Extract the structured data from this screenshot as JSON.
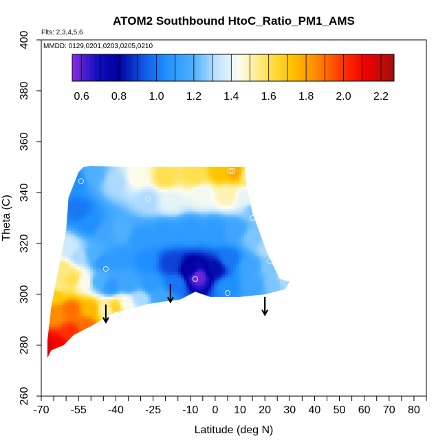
{
  "chart_data": {
    "type": "heatmap",
    "title": "ATOM2 Southbound HtoC_Ratio_PM1_AMS",
    "flights_note": "Flts: 2,3,4,5,6",
    "dates_note": "MMDD: 0129,0201,0203,0205,0210",
    "xlabel": "Latitude (deg N)",
    "ylabel": "Theta (C)",
    "xlim": [
      -70,
      85
    ],
    "ylim": [
      260,
      400
    ],
    "x_ticks_labeled": [
      "-70",
      "-55",
      "-40",
      "-25",
      "-10",
      "0",
      "10",
      "20",
      "30",
      "40",
      "50",
      "60",
      "70",
      "80"
    ],
    "x_ticks_labeled_values": [
      -70,
      -55,
      -40,
      -25,
      -10,
      0,
      10,
      20,
      30,
      40,
      50,
      60,
      70,
      80
    ],
    "x_ticks_minor_values": [
      -65,
      -60,
      -50,
      -45,
      -35,
      -30,
      -20,
      -15,
      -5,
      5,
      15,
      25,
      35,
      45,
      55,
      65,
      75,
      85
    ],
    "y_ticks": [
      "260",
      "280",
      "300",
      "320",
      "340",
      "360",
      "380",
      "400"
    ],
    "y_ticks_values": [
      260,
      280,
      300,
      320,
      340,
      360,
      380,
      400
    ],
    "colorbar": {
      "range": [
        0.55,
        2.27
      ],
      "tick_labels": [
        "0.6",
        "0.8",
        "1.0",
        "1.2",
        "1.4",
        "1.6",
        "1.8",
        "2.0",
        "2.2"
      ],
      "tick_values": [
        0.6,
        0.8,
        1.0,
        1.2,
        1.4,
        1.6,
        1.8,
        2.0,
        2.2
      ],
      "divider_values": [
        0.6,
        0.7,
        0.8,
        0.9,
        1.0,
        1.1,
        1.2,
        1.3,
        1.4,
        1.5,
        1.6,
        1.7,
        1.8,
        1.9,
        2.0,
        2.1,
        2.2
      ],
      "color_stops": [
        {
          "v": 0.55,
          "c": "#8a2be2"
        },
        {
          "v": 0.68,
          "c": "#1010c0"
        },
        {
          "v": 0.8,
          "c": "#0000a0"
        },
        {
          "v": 0.92,
          "c": "#1050e0"
        },
        {
          "v": 1.05,
          "c": "#1e90ff"
        },
        {
          "v": 1.2,
          "c": "#4fb0ff"
        },
        {
          "v": 1.32,
          "c": "#bfe3ff"
        },
        {
          "v": 1.44,
          "c": "#fbfdf0"
        },
        {
          "v": 1.6,
          "c": "#ffe050"
        },
        {
          "v": 1.72,
          "c": "#ffc400"
        },
        {
          "v": 1.85,
          "c": "#ff8c00"
        },
        {
          "v": 2.0,
          "c": "#ff3000"
        },
        {
          "v": 2.12,
          "c": "#ee0000"
        },
        {
          "v": 2.27,
          "c": "#a01010"
        }
      ]
    },
    "field_points": [
      {
        "lat": -56,
        "theta": 345,
        "v": 1.05
      },
      {
        "lat": -49,
        "theta": 347,
        "v": 1.2
      },
      {
        "lat": -40,
        "theta": 344,
        "v": 1.3
      },
      {
        "lat": -31,
        "theta": 346,
        "v": 1.45
      },
      {
        "lat": -20,
        "theta": 346,
        "v": 1.6
      },
      {
        "lat": -8,
        "theta": 347,
        "v": 1.6
      },
      {
        "lat": 2,
        "theta": 348,
        "v": 1.72
      },
      {
        "lat": 8,
        "theta": 348,
        "v": 1.78
      },
      {
        "lat": 13,
        "theta": 347,
        "v": 1.55
      },
      {
        "lat": -27,
        "theta": 337,
        "v": 1.3
      },
      {
        "lat": -18,
        "theta": 337,
        "v": 1.4
      },
      {
        "lat": -5,
        "theta": 339,
        "v": 1.42
      },
      {
        "lat": 5,
        "theta": 339,
        "v": 1.5
      },
      {
        "lat": 12,
        "theta": 338,
        "v": 1.4
      },
      {
        "lat": 16,
        "theta": 333,
        "v": 1.25
      },
      {
        "lat": -55,
        "theta": 333,
        "v": 1.0
      },
      {
        "lat": -50,
        "theta": 328,
        "v": 1.05
      },
      {
        "lat": -44,
        "theta": 325,
        "v": 1.15
      },
      {
        "lat": -38,
        "theta": 325,
        "v": 1.2
      },
      {
        "lat": -30,
        "theta": 322,
        "v": 1.1
      },
      {
        "lat": -20,
        "theta": 324,
        "v": 1.1
      },
      {
        "lat": -10,
        "theta": 325,
        "v": 1.1
      },
      {
        "lat": 0,
        "theta": 325,
        "v": 1.1
      },
      {
        "lat": 8,
        "theta": 325,
        "v": 1.15
      },
      {
        "lat": 15,
        "theta": 322,
        "v": 1.25
      },
      {
        "lat": 21,
        "theta": 318,
        "v": 1.3
      },
      {
        "lat": -59,
        "theta": 318,
        "v": 1.35
      },
      {
        "lat": -55,
        "theta": 315,
        "v": 1.3
      },
      {
        "lat": -49,
        "theta": 316,
        "v": 1.2
      },
      {
        "lat": -45,
        "theta": 313,
        "v": 1.1
      },
      {
        "lat": -38,
        "theta": 314,
        "v": 1.1
      },
      {
        "lat": -28,
        "theta": 313,
        "v": 1.05
      },
      {
        "lat": -18,
        "theta": 312,
        "v": 0.9
      },
      {
        "lat": -10,
        "theta": 310,
        "v": 0.78
      },
      {
        "lat": -7,
        "theta": 307,
        "v": 0.58
      },
      {
        "lat": 0,
        "theta": 310,
        "v": 0.82
      },
      {
        "lat": 6,
        "theta": 314,
        "v": 1.0
      },
      {
        "lat": 14,
        "theta": 311,
        "v": 1.15
      },
      {
        "lat": 22,
        "theta": 311,
        "v": 1.25
      },
      {
        "lat": 28,
        "theta": 305,
        "v": 1.3
      },
      {
        "lat": -63,
        "theta": 303,
        "v": 1.55
      },
      {
        "lat": -57,
        "theta": 306,
        "v": 1.6
      },
      {
        "lat": -53,
        "theta": 305,
        "v": 1.45
      },
      {
        "lat": -47,
        "theta": 305,
        "v": 1.2
      },
      {
        "lat": -42,
        "theta": 303,
        "v": 1.1
      },
      {
        "lat": -35,
        "theta": 304,
        "v": 1.15
      },
      {
        "lat": -26,
        "theta": 304,
        "v": 1.1
      },
      {
        "lat": -16,
        "theta": 304,
        "v": 1.0
      },
      {
        "lat": 5,
        "theta": 303,
        "v": 1.05
      },
      {
        "lat": 15,
        "theta": 303,
        "v": 1.15
      },
      {
        "lat": 24,
        "theta": 304,
        "v": 1.25
      },
      {
        "lat": -64,
        "theta": 292,
        "v": 1.85
      },
      {
        "lat": -58,
        "theta": 294,
        "v": 1.9
      },
      {
        "lat": -50,
        "theta": 294,
        "v": 1.75
      },
      {
        "lat": -44,
        "theta": 294,
        "v": 1.5
      },
      {
        "lat": -40,
        "theta": 295,
        "v": 1.65
      },
      {
        "lat": -36,
        "theta": 296,
        "v": 1.45
      },
      {
        "lat": -30,
        "theta": 298,
        "v": 1.3
      },
      {
        "lat": -22,
        "theta": 299,
        "v": 1.15
      },
      {
        "lat": -67,
        "theta": 279,
        "v": 2.15
      },
      {
        "lat": -63,
        "theta": 280,
        "v": 2.1
      },
      {
        "lat": -58,
        "theta": 285,
        "v": 2.0
      },
      {
        "lat": -52,
        "theta": 288,
        "v": 1.9
      },
      {
        "lat": -61,
        "theta": 310,
        "v": 1.55
      },
      {
        "lat": -64,
        "theta": 300,
        "v": 1.7
      }
    ],
    "sample_circles": [
      {
        "lat": -54,
        "theta": 344.5
      },
      {
        "lat": 6,
        "theta": 348.5
      },
      {
        "lat": 7,
        "theta": 348.5
      },
      {
        "lat": -27,
        "theta": 337.5
      },
      {
        "lat": 15,
        "theta": 330
      },
      {
        "lat": -44,
        "theta": 310
      },
      {
        "lat": 22,
        "theta": 313
      },
      {
        "lat": -8,
        "theta": 306
      },
      {
        "lat": 5,
        "theta": 300.5
      },
      {
        "lat": -39,
        "theta": 292
      }
    ],
    "arrows": [
      {
        "lat": -44,
        "theta_top": 296,
        "theta_tip": 289
      },
      {
        "lat": -18,
        "theta_top": 304,
        "theta_tip": 297
      },
      {
        "lat": 20,
        "theta_top": 299,
        "theta_tip": 292
      }
    ],
    "colors": {
      "axes": "#000000",
      "background": "#ffffff",
      "circle": "#eeeeee",
      "arrow": "#000000"
    }
  }
}
